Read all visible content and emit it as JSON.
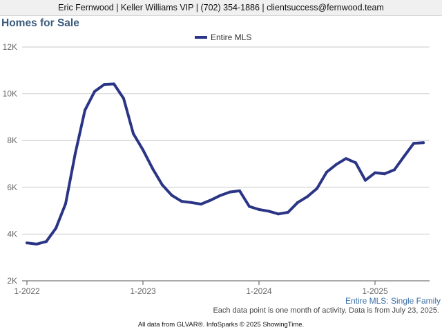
{
  "banner": {
    "text": "Eric Fernwood | Keller Williams VIP | (702) 354-1886 | clientsuccess@fernwood.team"
  },
  "page": {
    "title": "Homes for Sale"
  },
  "footer": {
    "note": "Each data point is one month of activity. Data is from July 23, 2025.",
    "credits": "All data from GLVAR®. InfoSparks © 2025 ShowingTime."
  },
  "chart_data": {
    "type": "line",
    "title": "",
    "xlabel": "",
    "ylabel": "",
    "legend": {
      "position": "top-center"
    },
    "grid": true,
    "caption": "Entire MLS: Single Family",
    "ylim": [
      2000,
      12000
    ],
    "y_ticks": [
      {
        "value": 2000,
        "label": "2K"
      },
      {
        "value": 4000,
        "label": "4K"
      },
      {
        "value": 6000,
        "label": "6K"
      },
      {
        "value": 8000,
        "label": "8K"
      },
      {
        "value": 10000,
        "label": "10K"
      },
      {
        "value": 12000,
        "label": "12K"
      }
    ],
    "x_ticks": [
      {
        "value": "2022-01",
        "label": "1-2022"
      },
      {
        "value": "2023-01",
        "label": "1-2023"
      },
      {
        "value": "2024-01",
        "label": "1-2024"
      },
      {
        "value": "2025-01",
        "label": "1-2025"
      }
    ],
    "x": [
      "2022-01",
      "2022-02",
      "2022-03",
      "2022-04",
      "2022-05",
      "2022-06",
      "2022-07",
      "2022-08",
      "2022-09",
      "2022-10",
      "2022-11",
      "2022-12",
      "2023-01",
      "2023-02",
      "2023-03",
      "2023-04",
      "2023-05",
      "2023-06",
      "2023-07",
      "2023-08",
      "2023-09",
      "2023-10",
      "2023-11",
      "2023-12",
      "2024-01",
      "2024-02",
      "2024-03",
      "2024-04",
      "2024-05",
      "2024-06",
      "2024-07",
      "2024-08",
      "2024-09",
      "2024-10",
      "2024-11",
      "2024-12",
      "2025-01",
      "2025-02",
      "2025-03",
      "2025-04",
      "2025-05",
      "2025-06"
    ],
    "series": [
      {
        "name": "Entire MLS",
        "color": "#2b3585",
        "values": [
          3620,
          3570,
          3680,
          4250,
          5300,
          7450,
          9300,
          10100,
          10400,
          10420,
          9800,
          8300,
          7600,
          6800,
          6100,
          5650,
          5400,
          5350,
          5280,
          5450,
          5650,
          5800,
          5850,
          5180,
          5050,
          4980,
          4860,
          4930,
          5350,
          5600,
          5950,
          6650,
          6980,
          7230,
          7050,
          6300,
          6620,
          6580,
          6750,
          7320,
          7880,
          7910
        ]
      }
    ]
  }
}
